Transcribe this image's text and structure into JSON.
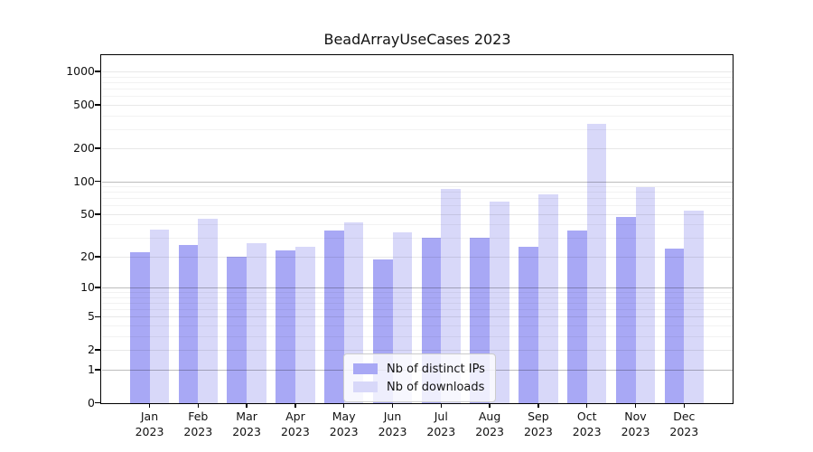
{
  "title": "BeadArrayUseCases 2023",
  "chart_data": {
    "type": "bar",
    "title": "BeadArrayUseCases 2023",
    "categories": [
      "Jan 2023",
      "Feb 2023",
      "Mar 2023",
      "Apr 2023",
      "May 2023",
      "Jun 2023",
      "Jul 2023",
      "Aug 2023",
      "Sep 2023",
      "Oct 2023",
      "Nov 2023",
      "Dec 2023"
    ],
    "series": [
      {
        "name": "Nb of distinct IPs",
        "color": "#a8a8f5",
        "values": [
          22,
          26,
          20,
          23,
          35,
          19,
          30,
          30,
          25,
          35,
          47,
          24
        ]
      },
      {
        "name": "Nb of downloads",
        "color": "#d8d8f9",
        "values": [
          36,
          45,
          27,
          25,
          42,
          34,
          85,
          65,
          76,
          335,
          89,
          54
        ]
      }
    ],
    "xlabel": "",
    "ylabel": "",
    "yticks": [
      0,
      1,
      2,
      5,
      10,
      20,
      50,
      100,
      200,
      500,
      1000
    ],
    "scale": "log1p",
    "ylim": [
      0,
      1380
    ],
    "grid": true,
    "legend_position": "lower center"
  }
}
